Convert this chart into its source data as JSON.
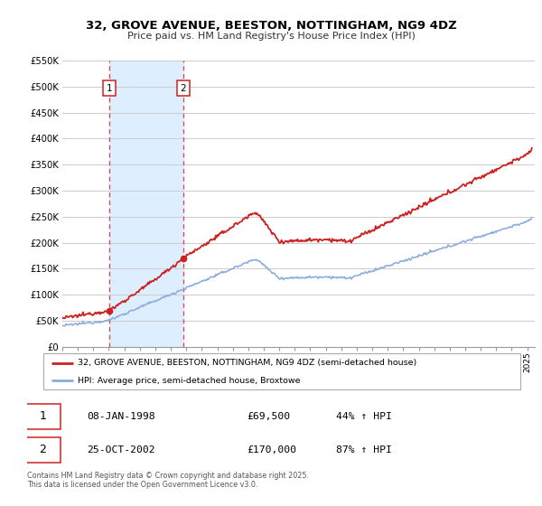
{
  "title1": "32, GROVE AVENUE, BEESTON, NOTTINGHAM, NG9 4DZ",
  "title2": "Price paid vs. HM Land Registry's House Price Index (HPI)",
  "ylim": [
    0,
    550000
  ],
  "xlim_start": 1995.0,
  "xlim_end": 2025.5,
  "sale1_date": 1998.03,
  "sale1_price": 69500,
  "sale2_date": 2002.81,
  "sale2_price": 170000,
  "grid_color": "#cccccc",
  "hpi_line_color": "#88aadd",
  "price_line_color": "#cc2222",
  "sale_marker_color": "#cc2222",
  "vline_color": "#dd4444",
  "shade_color": "#ddeeff",
  "legend1": "32, GROVE AVENUE, BEESTON, NOTTINGHAM, NG9 4DZ (semi-detached house)",
  "legend2": "HPI: Average price, semi-detached house, Broxtowe",
  "label1_num": "1",
  "label1_date": "08-JAN-1998",
  "label1_price": "£69,500",
  "label1_hpi": "44% ↑ HPI",
  "label2_num": "2",
  "label2_date": "25-OCT-2002",
  "label2_price": "£170,000",
  "label2_hpi": "87% ↑ HPI",
  "footnote": "Contains HM Land Registry data © Crown copyright and database right 2025.\nThis data is licensed under the Open Government Licence v3.0.",
  "yticks": [
    0,
    50000,
    100000,
    150000,
    200000,
    250000,
    300000,
    350000,
    400000,
    450000,
    500000,
    550000
  ],
  "ytick_labels": [
    "£0",
    "£50K",
    "£100K",
    "£150K",
    "£200K",
    "£250K",
    "£300K",
    "£350K",
    "£400K",
    "£450K",
    "£500K",
    "£550K"
  ]
}
